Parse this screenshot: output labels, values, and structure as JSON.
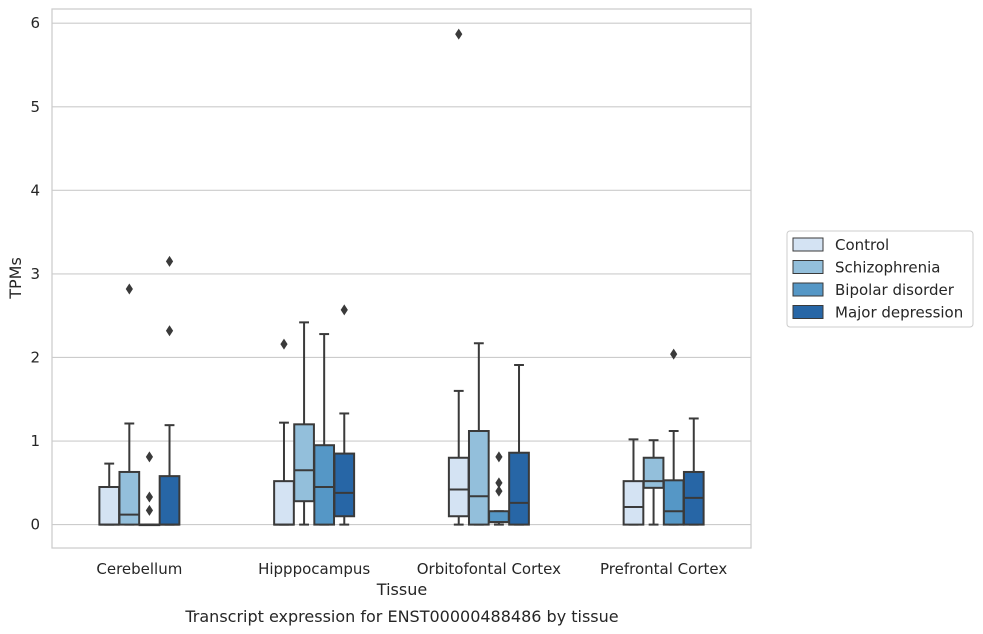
{
  "chart_data": {
    "type": "box",
    "caption": "Transcript expression for ENST00000488486 by tissue",
    "xlabel": "Tissue",
    "ylabel": "TPMs",
    "ylim": [
      -0.28,
      6.17
    ],
    "yticks": [
      0,
      1,
      2,
      3,
      4,
      5,
      6
    ],
    "grid": "horizontal",
    "legend_position": "right",
    "categories": [
      "Cerebellum",
      "Hipppocampus",
      "Orbitofontal Cortex",
      "Prefrontal Cortex"
    ],
    "series": [
      {
        "name": "Control",
        "color": "#d4e3f3",
        "boxes": [
          {
            "min": 0,
            "q1": 0,
            "median": 0,
            "q3": 0.45,
            "max": 0.73,
            "outliers": []
          },
          {
            "min": 0,
            "q1": 0,
            "median": 0,
            "q3": 0.52,
            "max": 1.22,
            "outliers": [
              2.16
            ]
          },
          {
            "min": 0,
            "q1": 0.1,
            "median": 0.42,
            "q3": 0.8,
            "max": 1.6,
            "outliers": [
              5.87
            ]
          },
          {
            "min": 0,
            "q1": 0,
            "median": 0.21,
            "q3": 0.52,
            "max": 1.02,
            "outliers": []
          }
        ]
      },
      {
        "name": "Schizophrenia",
        "color": "#93bfdb",
        "boxes": [
          {
            "min": 0,
            "q1": 0,
            "median": 0.12,
            "q3": 0.63,
            "max": 1.21,
            "outliers": [
              2.82
            ]
          },
          {
            "min": 0,
            "q1": 0.28,
            "median": 0.65,
            "q3": 1.2,
            "max": 2.42,
            "outliers": []
          },
          {
            "min": 0,
            "q1": 0,
            "median": 0.34,
            "q3": 1.12,
            "max": 2.17,
            "outliers": []
          },
          {
            "min": 0,
            "q1": 0.44,
            "median": 0.52,
            "q3": 0.8,
            "max": 1.01,
            "outliers": []
          }
        ]
      },
      {
        "name": "Bipolar disorder",
        "color": "#5597c6",
        "boxes": [
          {
            "min": 0,
            "q1": 0,
            "median": 0,
            "q3": 0,
            "max": 0,
            "outliers": [
              0.17,
              0.33,
              0.81
            ]
          },
          {
            "min": 0,
            "q1": 0,
            "median": 0.45,
            "q3": 0.95,
            "max": 2.28,
            "outliers": []
          },
          {
            "min": 0,
            "q1": 0.03,
            "median": 0.03,
            "q3": 0.16,
            "max": 0.16,
            "outliers": [
              0.4,
              0.5,
              0.81
            ]
          },
          {
            "min": 0,
            "q1": 0,
            "median": 0.16,
            "q3": 0.53,
            "max": 1.12,
            "outliers": [
              2.04
            ]
          }
        ]
      },
      {
        "name": "Major depression",
        "color": "#2766a6",
        "boxes": [
          {
            "min": 0,
            "q1": 0,
            "median": 0,
            "q3": 0.58,
            "max": 1.19,
            "outliers": [
              2.32,
              3.15
            ]
          },
          {
            "min": 0,
            "q1": 0.1,
            "median": 0.38,
            "q3": 0.85,
            "max": 1.33,
            "outliers": [
              2.57
            ]
          },
          {
            "min": 0,
            "q1": 0,
            "median": 0.26,
            "q3": 0.86,
            "max": 1.91,
            "outliers": []
          },
          {
            "min": 0,
            "q1": 0,
            "median": 0.32,
            "q3": 0.63,
            "max": 1.27,
            "outliers": []
          }
        ]
      }
    ]
  }
}
